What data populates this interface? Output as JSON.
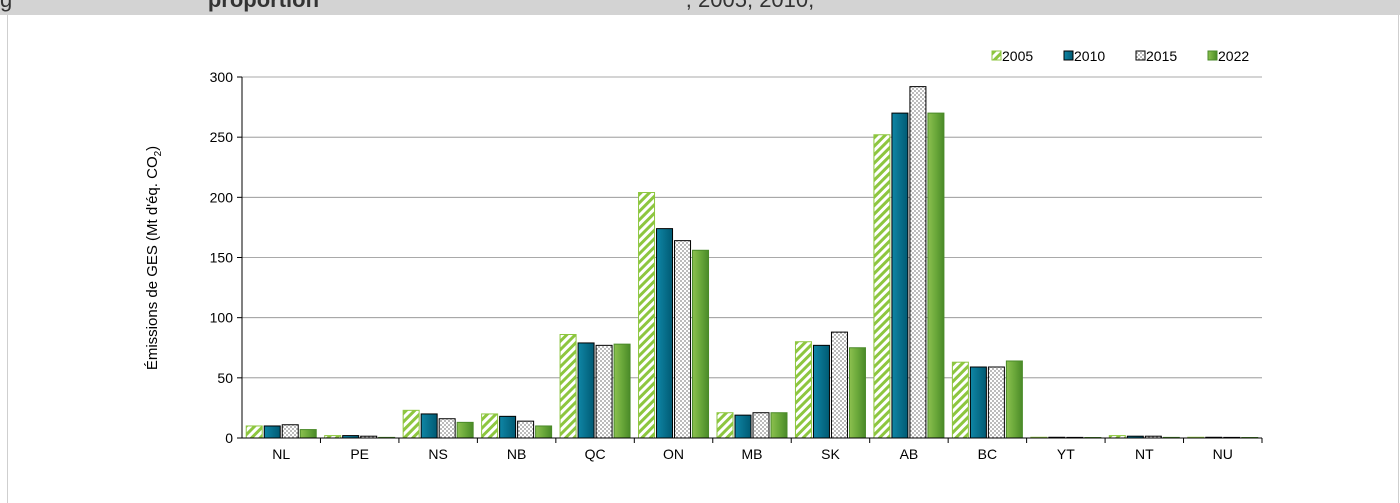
{
  "header": {
    "prefix": "g",
    "title_bold": "proportion",
    "title_rest": ", 2005, 2010,"
  },
  "chart_data": {
    "type": "bar",
    "ylabel": "Émissions de GES (Mt d'éq. CO",
    "ylabel_sub": "2",
    "ylabel_close": ")",
    "ylim": [
      0,
      300
    ],
    "yticks": [
      0,
      50,
      100,
      150,
      200,
      250,
      300
    ],
    "grid": true,
    "legend_position": "top-right",
    "categories": [
      "NL",
      "PE",
      "NS",
      "NB",
      "QC",
      "ON",
      "MB",
      "SK",
      "AB",
      "BC",
      "YT",
      "NT",
      "NU"
    ],
    "series": [
      {
        "name": "2005",
        "color": "#8dc63f",
        "pattern": "diagonal-stripes",
        "values": [
          10,
          2,
          23,
          20,
          86,
          204,
          21,
          80,
          252,
          63,
          0.6,
          2,
          0.6
        ]
      },
      {
        "name": "2010",
        "color": "#006e8c",
        "pattern": "solid",
        "values": [
          10,
          2,
          20,
          18,
          79,
          174,
          19,
          77,
          270,
          59,
          0.6,
          1.5,
          0.6
        ]
      },
      {
        "name": "2015",
        "color": "#bfbfbf",
        "pattern": "dots",
        "values": [
          11,
          1.5,
          16,
          14,
          77,
          164,
          21,
          88,
          292,
          59,
          0.5,
          1.5,
          0.5
        ]
      },
      {
        "name": "2022",
        "color": "#5a9a2e",
        "pattern": "gradient",
        "values": [
          7,
          0.5,
          13,
          10,
          78,
          156,
          21,
          75,
          270,
          64,
          0.3,
          0.5,
          0.3
        ]
      }
    ]
  }
}
